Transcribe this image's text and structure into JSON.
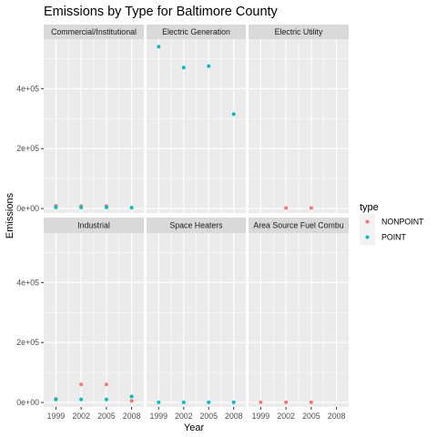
{
  "chart_data": {
    "type": "scatter",
    "title": "Emissions by Type for Baltimore County",
    "xlabel": "Year",
    "ylabel": "Emissions",
    "x_ticks": [
      1999,
      2002,
      2005,
      2008
    ],
    "y_ticks": [
      0,
      200000,
      400000
    ],
    "y_tick_labels": [
      "0e+00",
      "2e+05",
      "4e+05"
    ],
    "ylim": [
      -15000,
      565000
    ],
    "xlim": [
      1997.55,
      2009.45
    ],
    "grid": true,
    "legend": {
      "title": "type",
      "position": "right",
      "entries": [
        {
          "name": "NONPOINT",
          "color": "#F8766D"
        },
        {
          "name": "POINT",
          "color": "#00BFC4"
        }
      ]
    },
    "facets": [
      {
        "name": "Commercial/Institutional",
        "series": [
          {
            "name": "NONPOINT",
            "x": [
              1999,
              2002,
              2005
            ],
            "y": [
              9000,
              8000,
              8000
            ]
          },
          {
            "name": "POINT",
            "x": [
              1999,
              2002,
              2005,
              2008
            ],
            "y": [
              4000,
              3500,
              4000,
              3000
            ]
          }
        ]
      },
      {
        "name": "Electric Generation",
        "series": [
          {
            "name": "POINT",
            "x": [
              1999,
              2002,
              2005,
              2008
            ],
            "y": [
              540000,
              470000,
              475000,
              315000
            ]
          }
        ]
      },
      {
        "name": "Electric Utility",
        "series": [
          {
            "name": "NONPOINT",
            "x": [
              2002,
              2005
            ],
            "y": [
              2000,
              2000
            ]
          }
        ]
      },
      {
        "name": "Industrial",
        "series": [
          {
            "name": "NONPOINT",
            "x": [
              1999,
              2002,
              2005,
              2008
            ],
            "y": [
              12000,
              60000,
              60000,
              5000
            ]
          },
          {
            "name": "POINT",
            "x": [
              1999,
              2002,
              2005,
              2008
            ],
            "y": [
              10000,
              10000,
              10000,
              20000
            ]
          }
        ]
      },
      {
        "name": "Space Heaters",
        "series": [
          {
            "name": "POINT",
            "x": [
              1999,
              2002,
              2005,
              2008
            ],
            "y": [
              500,
              500,
              500,
              500
            ]
          }
        ]
      },
      {
        "name": "Area Source Fuel Combu",
        "series": [
          {
            "name": "NONPOINT",
            "x": [
              1999,
              2002,
              2005
            ],
            "y": [
              500,
              500,
              500
            ]
          }
        ]
      }
    ]
  }
}
